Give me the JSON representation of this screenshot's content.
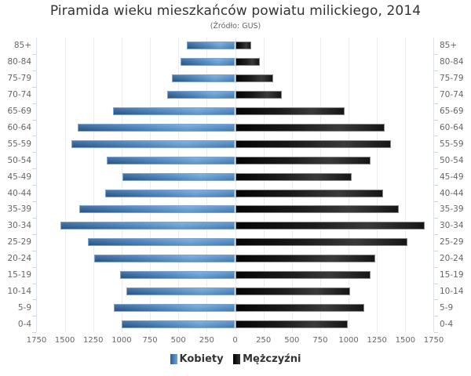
{
  "chart_data": {
    "type": "bar",
    "orientation": "horizontal-population-pyramid",
    "title": "Piramida wieku mieszkańców powiatu milickiego, 2014",
    "subtitle": "(Źródło: GUS)",
    "xlabel": "",
    "ylabel": "",
    "xlim": [
      -1750,
      1750
    ],
    "x_ticks": [
      "1750",
      "1500",
      "1250",
      "1000",
      "750",
      "500",
      "250",
      "0",
      "250",
      "500",
      "750",
      "1000",
      "1250",
      "1500",
      "1750"
    ],
    "grid": true,
    "legend_position": "bottom",
    "categories": [
      "85+",
      "80-84",
      "75-79",
      "70-74",
      "65-69",
      "60-64",
      "55-59",
      "50-54",
      "45-49",
      "40-44",
      "35-39",
      "30-34",
      "25-29",
      "20-24",
      "15-19",
      "10-14",
      "5-9",
      "0-4"
    ],
    "series": [
      {
        "name": "Kobiety",
        "color": "#4a86c4",
        "side": "left",
        "values": [
          423,
          478,
          554,
          596,
          1074,
          1386,
          1441,
          1130,
          991,
          1143,
          1372,
          1538,
          1296,
          1240,
          1012,
          956,
          1067,
          998
        ]
      },
      {
        "name": "Mężczyźni",
        "color": "#1a1a1a",
        "side": "right",
        "values": [
          139,
          215,
          333,
          409,
          963,
          1317,
          1372,
          1192,
          1026,
          1303,
          1441,
          1670,
          1518,
          1234,
          1192,
          1012,
          1137,
          991
        ]
      }
    ]
  },
  "legend": {
    "women": "Kobiety",
    "men": "Mężczyźni"
  }
}
